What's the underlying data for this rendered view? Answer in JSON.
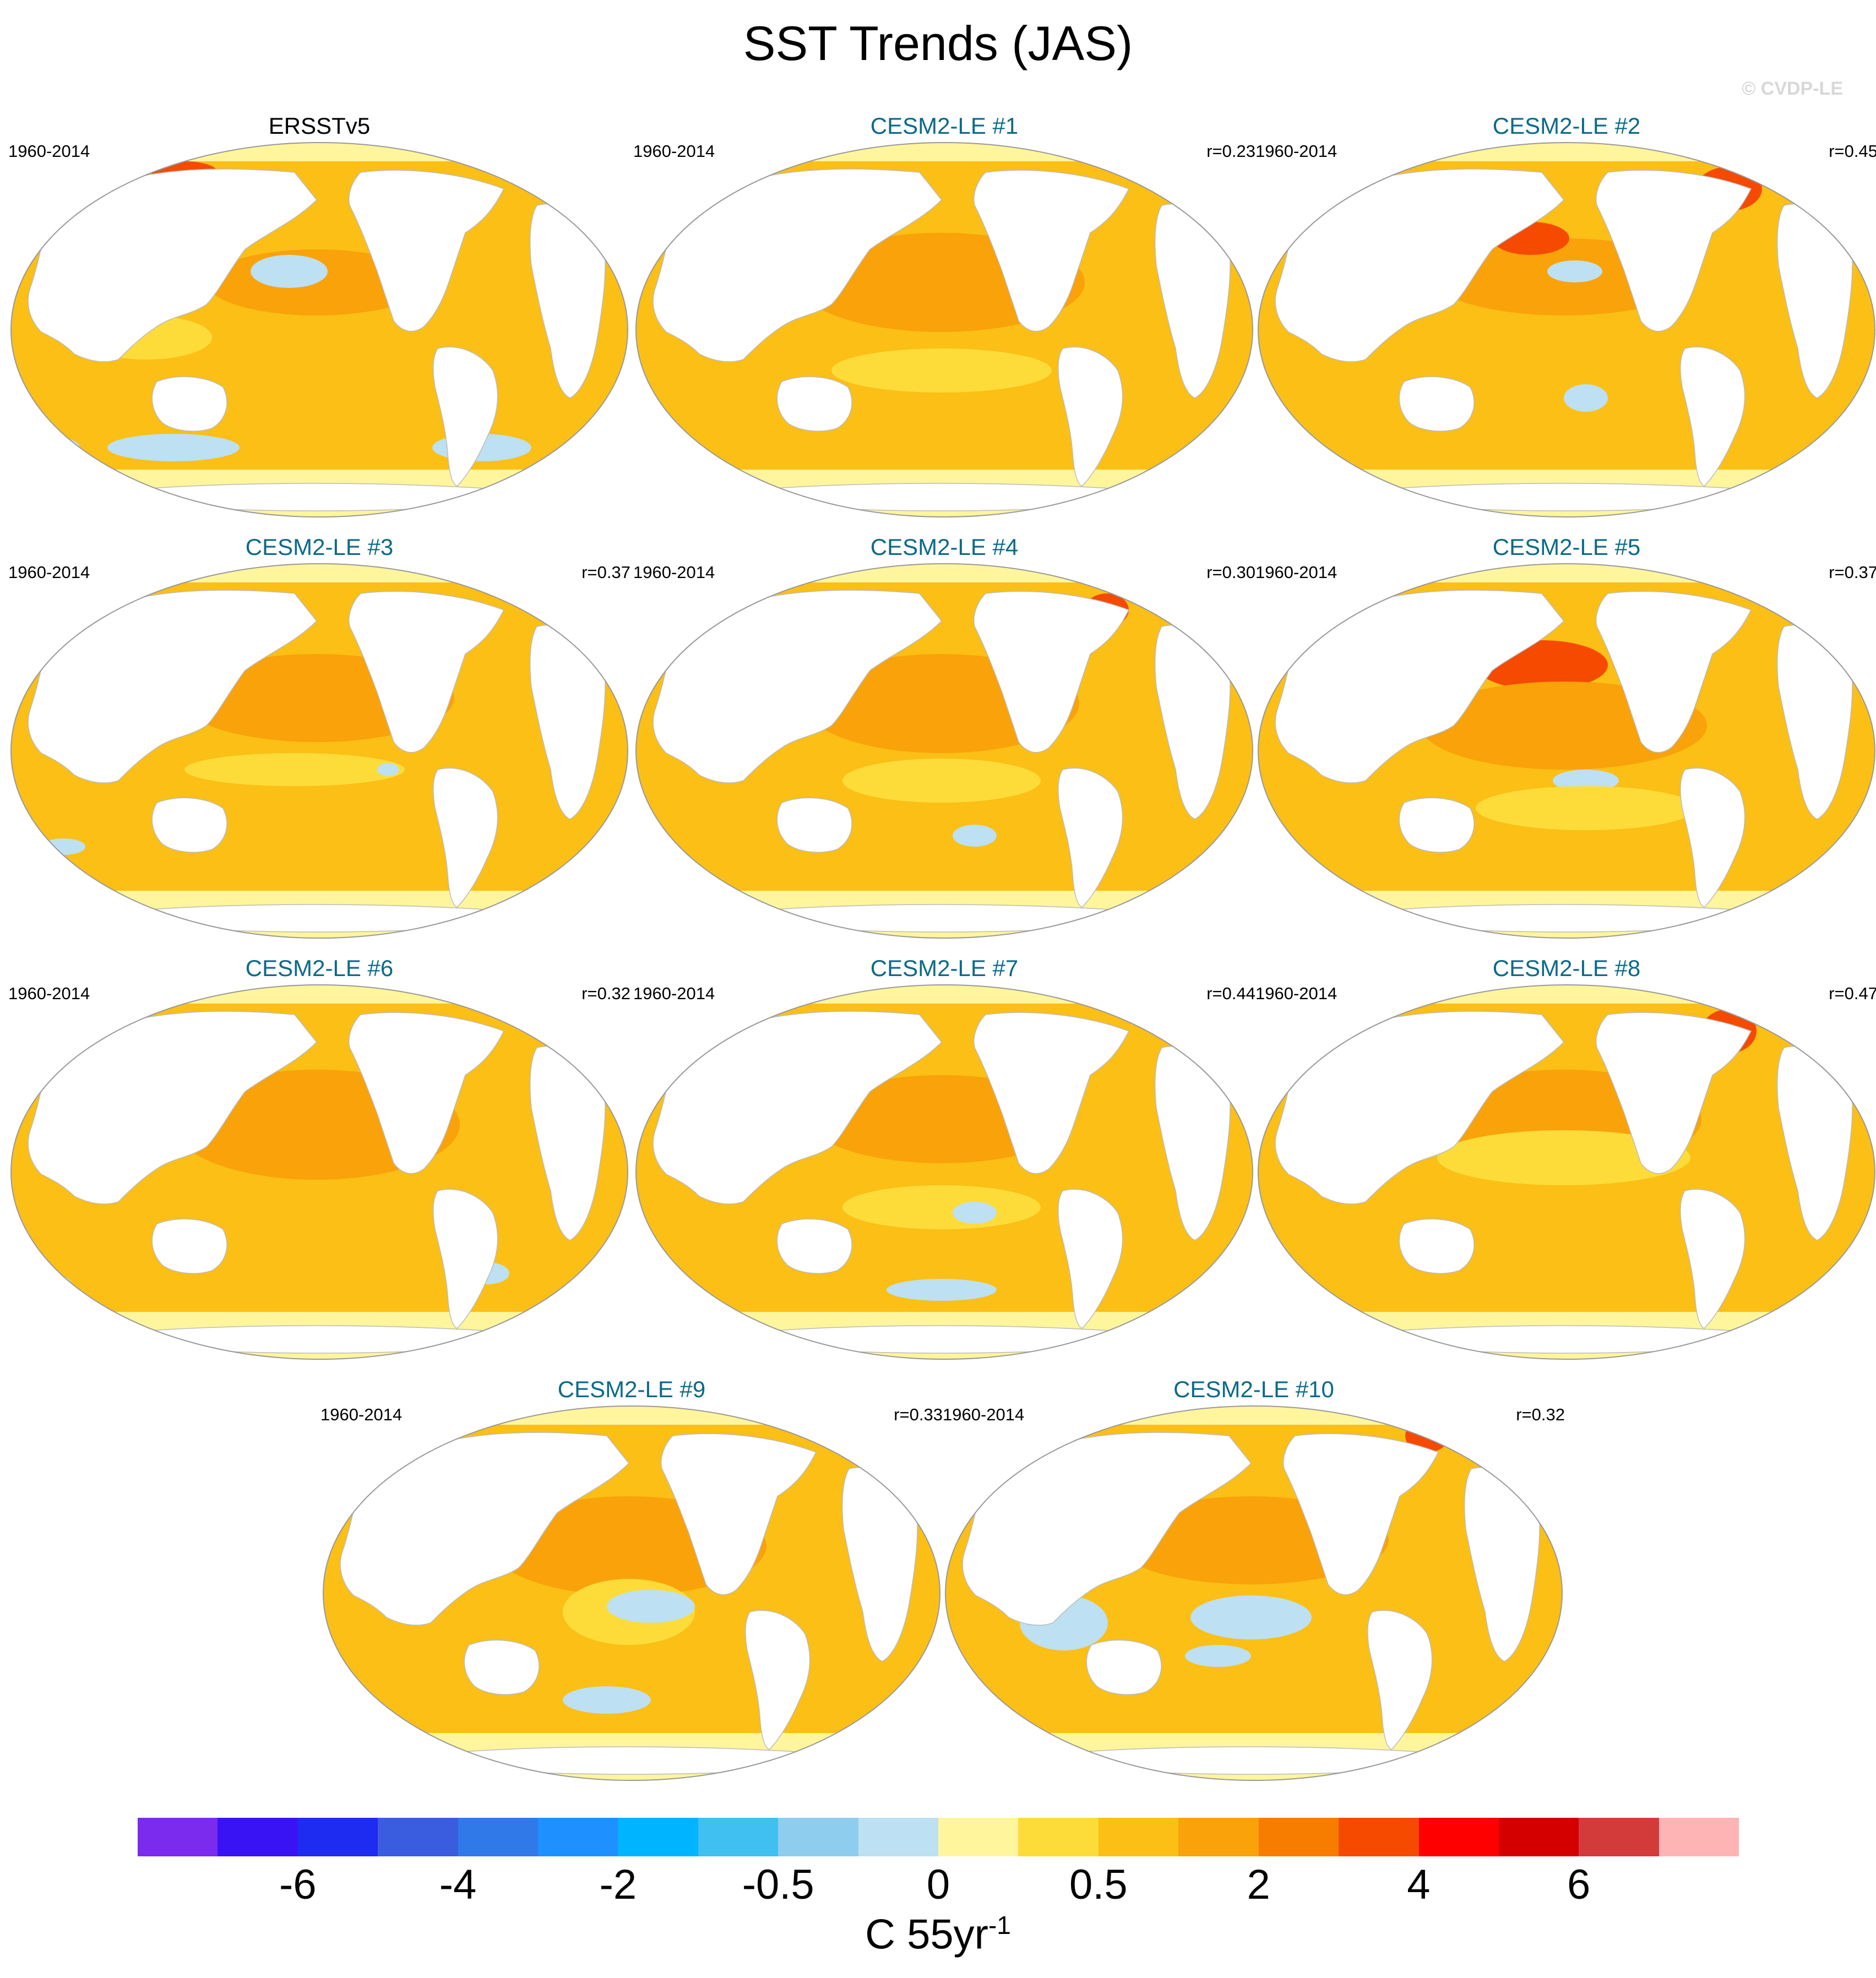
{
  "title": "SST Trends (JAS)",
  "watermark": "© CVDP-LE",
  "panels": [
    {
      "title": "ERSSTv5",
      "period": "1960-2014",
      "r": "",
      "observed": true
    },
    {
      "title": "CESM2-LE #1",
      "period": "1960-2014",
      "r": "r=0.23"
    },
    {
      "title": "CESM2-LE #2",
      "period": "1960-2014",
      "r": "r=0.45"
    },
    {
      "title": "CESM2-LE #3",
      "period": "1960-2014",
      "r": "r=0.37"
    },
    {
      "title": "CESM2-LE #4",
      "period": "1960-2014",
      "r": "r=0.30"
    },
    {
      "title": "CESM2-LE #5",
      "period": "1960-2014",
      "r": "r=0.37"
    },
    {
      "title": "CESM2-LE #6",
      "period": "1960-2014",
      "r": "r=0.32"
    },
    {
      "title": "CESM2-LE #7",
      "period": "1960-2014",
      "r": "r=0.44"
    },
    {
      "title": "CESM2-LE #8",
      "period": "1960-2014",
      "r": "r=0.47"
    },
    {
      "title": "CESM2-LE #9",
      "period": "1960-2014",
      "r": "r=0.33"
    },
    {
      "title": "CESM2-LE #10",
      "period": "1960-2014",
      "r": "r=0.32"
    }
  ],
  "colorbar": {
    "colors": [
      "#7b2bee",
      "#3a13f5",
      "#1e2bf0",
      "#3a5ddf",
      "#2f7ae8",
      "#1e90ff",
      "#00b4ff",
      "#3fc0f0",
      "#8ecdee",
      "#bde0f2",
      "#fff59c",
      "#fddc3a",
      "#fbbf15",
      "#f9a20a",
      "#f77d00",
      "#f54a00",
      "#fe0000",
      "#d40000",
      "#d33a3a",
      "#feb4b4"
    ],
    "labels": [
      "-6",
      "-4",
      "-2",
      "-0.5",
      "0",
      "0.5",
      "2",
      "4",
      "6"
    ],
    "units": "C 55yr",
    "units_exp": "-1"
  },
  "map_colors": {
    "land": "#ffffff",
    "ocean_base": "#fbbf15",
    "warm": "#f9a20a",
    "warmer": "#f77d00",
    "hot": "#f54a00",
    "light": "#fddc3a",
    "pale": "#fff59c",
    "cool": "#bde0f2",
    "cooler": "#8ecdee",
    "outline": "#999999"
  }
}
